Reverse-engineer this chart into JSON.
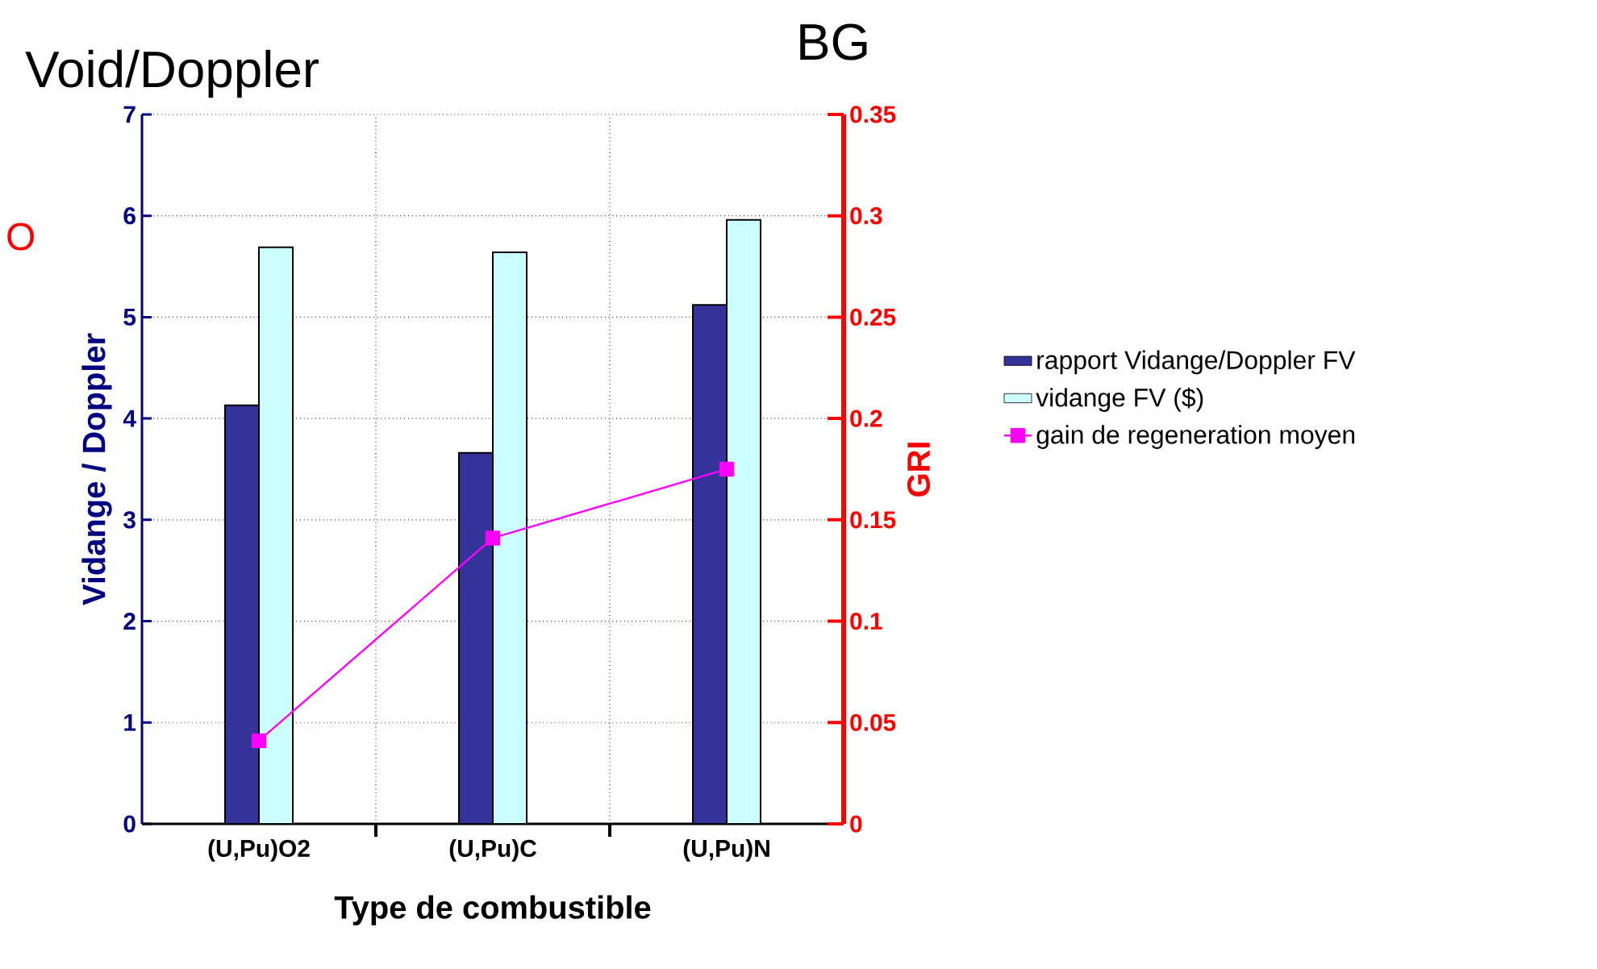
{
  "chart_data": {
    "type": "bar",
    "title": "Void/Doppler",
    "xlabel": "Type de combustible",
    "ylabel": "Vidange / Doppler",
    "y2label": "GRI",
    "annotations": [
      "BG",
      "O"
    ],
    "categories": [
      "(U,Pu)O2",
      "(U,Pu)C",
      "(U,Pu)N"
    ],
    "series": [
      {
        "name": "rapport Vidange/Doppler FV",
        "color": "#333399",
        "values": [
          4.13,
          3.66,
          5.12
        ]
      },
      {
        "name": "vidange FV ($)",
        "color": "#ccffff",
        "values": [
          5.69,
          5.64,
          5.96
        ]
      },
      {
        "name": "gain de regeneration moyen",
        "type": "line",
        "axis": "y2",
        "color": "#ff00ff",
        "values": [
          0.041,
          0.141,
          0.175
        ]
      }
    ],
    "ylim": [
      0,
      7
    ],
    "yticks": [
      0,
      1,
      2,
      3,
      4,
      5,
      6,
      7
    ],
    "y2lim": [
      0,
      0.35
    ],
    "y2ticks": [
      0,
      0.05,
      0.1,
      0.15,
      0.2,
      0.25,
      0.3,
      0.35
    ],
    "grid": true,
    "legend": "right",
    "marker": "square",
    "line_style": "solid"
  }
}
